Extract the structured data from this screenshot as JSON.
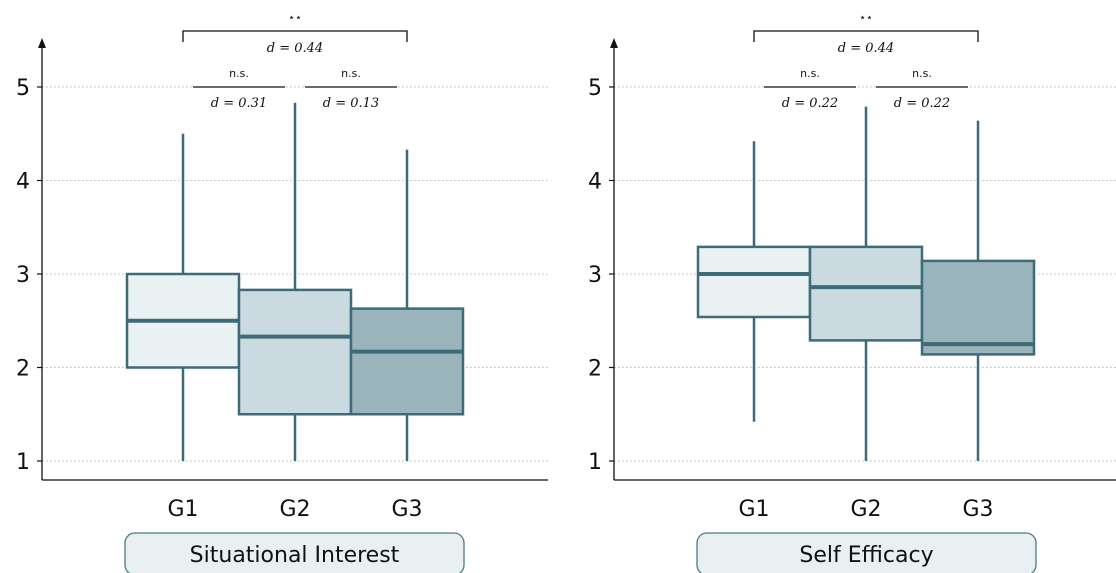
{
  "chart_data": [
    {
      "type": "boxplot",
      "title": "Situational Interest",
      "categories": [
        "G1",
        "G2",
        "G3"
      ],
      "ylim": [
        1,
        5
      ],
      "yticks": [
        "1",
        "2",
        "3",
        "4",
        "5"
      ],
      "grid": true,
      "boxes": [
        {
          "label": "G1",
          "whisker_low": 1.0,
          "q1": 2.0,
          "median": 2.5,
          "q3": 3.0,
          "whisker_high": 4.5,
          "fill": "#eaf1f3"
        },
        {
          "label": "G2",
          "whisker_low": 1.0,
          "q1": 1.5,
          "median": 2.33,
          "q3": 2.83,
          "whisker_high": 4.83,
          "fill": "#cbdae0"
        },
        {
          "label": "G3",
          "whisker_low": 1.0,
          "q1": 1.5,
          "median": 2.17,
          "q3": 2.63,
          "whisker_high": 4.33,
          "fill": "#9ab4bc"
        }
      ],
      "comparisons": [
        {
          "from": 0,
          "to": 2,
          "sig": "⋆⋆",
          "d": "d = 0.44"
        },
        {
          "from": 0,
          "to": 1,
          "sig": "n.s.",
          "d": "d = 0.31"
        },
        {
          "from": 1,
          "to": 2,
          "sig": "n.s.",
          "d": "d = 0.13"
        }
      ]
    },
    {
      "type": "boxplot",
      "title": "Self Efficacy",
      "categories": [
        "G1",
        "G2",
        "G3"
      ],
      "ylim": [
        1,
        5
      ],
      "yticks": [
        "1",
        "2",
        "3",
        "4",
        "5"
      ],
      "grid": true,
      "boxes": [
        {
          "label": "G1",
          "whisker_low": 1.42,
          "q1": 2.54,
          "median": 3.0,
          "q3": 3.29,
          "whisker_high": 4.42,
          "fill": "#eaf1f3"
        },
        {
          "label": "G2",
          "whisker_low": 1.0,
          "q1": 2.29,
          "median": 2.86,
          "q3": 3.29,
          "whisker_high": 4.79,
          "fill": "#cbdae0"
        },
        {
          "label": "G3",
          "whisker_low": 1.0,
          "q1": 2.14,
          "median": 2.25,
          "q3": 3.14,
          "whisker_high": 4.64,
          "fill": "#9ab4bc"
        }
      ],
      "comparisons": [
        {
          "from": 0,
          "to": 2,
          "sig": "⋆⋆",
          "d": "d = 0.44"
        },
        {
          "from": 0,
          "to": 1,
          "sig": "n.s.",
          "d": "d = 0.22"
        },
        {
          "from": 1,
          "to": 2,
          "sig": "n.s.",
          "d": "d = 0.22"
        }
      ]
    }
  ],
  "colors": {
    "stroke": "#3d6b78",
    "grid": "#b5b5b5",
    "label_box_fill": "#e8f0f2",
    "label_box_stroke": "#4a7a88"
  }
}
